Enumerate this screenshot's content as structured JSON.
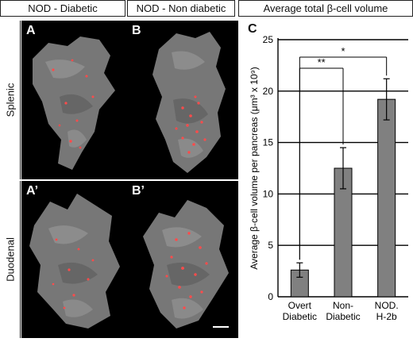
{
  "headers": {
    "col1": "NOD - Diabetic",
    "col2": "NOD - Non diabetic",
    "col3": "Average total β-cell volume"
  },
  "rows": {
    "row1": "Splenic",
    "row2": "Duodenal"
  },
  "panels": {
    "a": "A",
    "b": "B",
    "a_prime": "A’",
    "b_prime": "B’",
    "c": "C"
  },
  "colors": {
    "bar": "#808080",
    "tissue": "#7a7a7a",
    "cells": "#ff4b4b"
  },
  "chart_data": {
    "type": "bar",
    "categories": [
      "Overt Diabetic",
      "Non-Diabetic",
      "NOD. H-2b"
    ],
    "category_lines": [
      [
        "Overt",
        "Diabetic"
      ],
      [
        "Non-",
        "Diabetic"
      ],
      [
        "NOD.",
        "H-2b"
      ]
    ],
    "values": [
      2.6,
      12.5,
      19.2
    ],
    "errors": [
      0.7,
      2.0,
      2.0
    ],
    "ylabel": "Average β-cell volume per pancreas (μm³ x 10⁹)",
    "ylim": [
      0,
      25
    ],
    "yticks": [
      0,
      5,
      10,
      15,
      20,
      25
    ],
    "grid": true,
    "significance": [
      {
        "from": 0,
        "to": 1,
        "label": "**"
      },
      {
        "from": 0,
        "to": 2,
        "label": "*"
      }
    ]
  }
}
